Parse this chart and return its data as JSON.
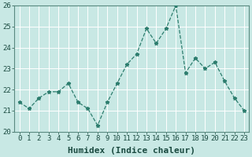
{
  "x": [
    0,
    1,
    2,
    3,
    4,
    5,
    6,
    7,
    8,
    9,
    10,
    11,
    12,
    13,
    14,
    15,
    16,
    17,
    18,
    19,
    20,
    21,
    22,
    23
  ],
  "y": [
    21.4,
    21.1,
    21.6,
    21.9,
    21.9,
    22.3,
    21.4,
    21.1,
    20.3,
    21.4,
    22.3,
    23.2,
    23.7,
    24.9,
    24.2,
    24.9,
    26.0,
    22.8,
    23.5,
    23.0,
    23.3,
    22.4,
    21.6,
    21.0
  ],
  "xlabel": "Humidex (Indice chaleur)",
  "ylim": [
    20,
    26
  ],
  "xlim": [
    -0.5,
    23.5
  ],
  "yticks": [
    20,
    21,
    22,
    23,
    24,
    25,
    26
  ],
  "xticks": [
    0,
    1,
    2,
    3,
    4,
    5,
    6,
    7,
    8,
    9,
    10,
    11,
    12,
    13,
    14,
    15,
    16,
    17,
    18,
    19,
    20,
    21,
    22,
    23
  ],
  "line_color": "#2d7d6e",
  "marker": "*",
  "marker_size": 3.5,
  "bg_color": "#c8e8e4",
  "plot_bg_color": "#c8e8e4",
  "grid_color": "#ffffff",
  "tick_label_fontsize": 6.5,
  "xlabel_fontsize": 8,
  "spine_color": "#5a8a80",
  "line_width": 0.9
}
